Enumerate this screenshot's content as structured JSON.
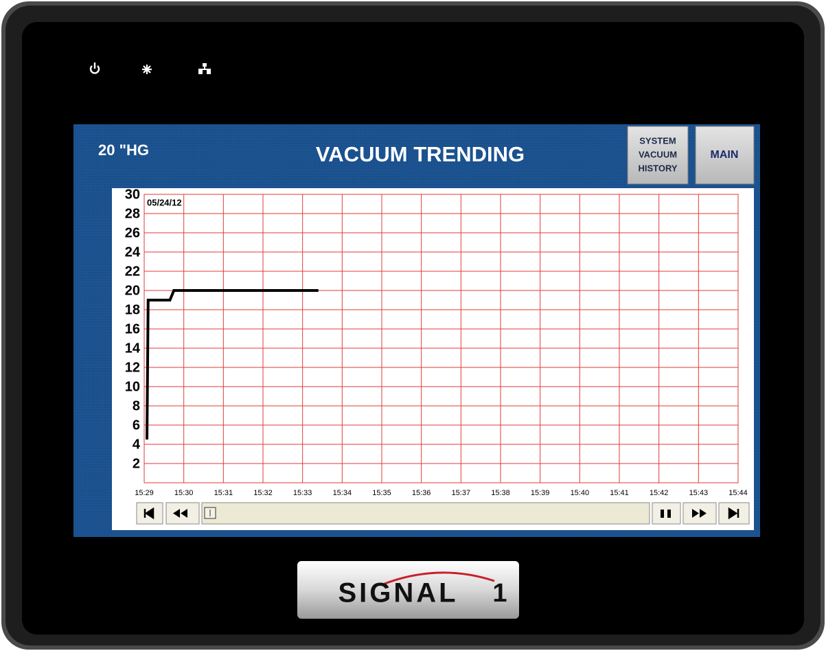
{
  "header": {
    "reading": "20 \"HG",
    "title": "VACUUM TRENDING",
    "buttons": [
      {
        "lines": [
          "SYSTEM",
          "VACUUM",
          "HISTORY"
        ]
      },
      {
        "lines": [
          "MAIN"
        ]
      }
    ]
  },
  "brand": {
    "name": "SIGNAL",
    "number": "1"
  },
  "chart_data": {
    "type": "line",
    "annotation": "05/24/12",
    "x": [
      929.07,
      929.1,
      929.65,
      929.75,
      933.4
    ],
    "values": [
      4.5,
      19,
      19,
      20,
      20
    ],
    "color": "#000000",
    "xlim": [
      929,
      944
    ],
    "xticks": [
      {
        "value": 929,
        "label": "15:29"
      },
      {
        "value": 930,
        "label": "15:30"
      },
      {
        "value": 931,
        "label": "15:31"
      },
      {
        "value": 932,
        "label": "15:32"
      },
      {
        "value": 933,
        "label": "15:33"
      },
      {
        "value": 934,
        "label": "15:34"
      },
      {
        "value": 935,
        "label": "15:35"
      },
      {
        "value": 936,
        "label": "15:36"
      },
      {
        "value": 937,
        "label": "15:37"
      },
      {
        "value": 938,
        "label": "15:38"
      },
      {
        "value": 939,
        "label": "15:39"
      },
      {
        "value": 940,
        "label": "15:40"
      },
      {
        "value": 941,
        "label": "15:41"
      },
      {
        "value": 942,
        "label": "15:42"
      },
      {
        "value": 943,
        "label": "15:43"
      },
      {
        "value": 944,
        "label": "15:44"
      }
    ],
    "ylim": [
      0,
      30
    ],
    "yticks": [
      2,
      4,
      6,
      8,
      10,
      12,
      14,
      16,
      18,
      20,
      22,
      24,
      26,
      28,
      30
    ],
    "grid": true,
    "grid_color": "#e23a3a"
  }
}
